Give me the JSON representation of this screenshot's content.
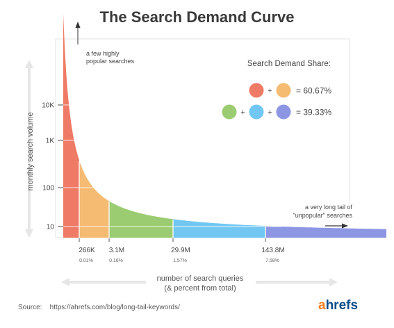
{
  "chart_data": {
    "type": "area",
    "title": "The Search Demand Curve",
    "ylabel": "monthly search volume",
    "xlabel_line1": "number of search queries",
    "xlabel_line2": "(& percent from total)",
    "y_scale": "log",
    "y_ticks": [
      {
        "value": 10,
        "label": "10"
      },
      {
        "value": 100,
        "label": "100"
      },
      {
        "value": 1000,
        "label": "1K"
      },
      {
        "value": 10000,
        "label": "10K"
      }
    ],
    "x_markers": [
      {
        "label": "266K",
        "percent": "0.01%"
      },
      {
        "label": "3.1M",
        "percent": "0.16%"
      },
      {
        "label": "29.9M",
        "percent": "1.57%"
      },
      {
        "label": "143.8M",
        "percent": "7.58%"
      }
    ],
    "segments": [
      {
        "color": "#ef7b66",
        "from": "0",
        "to": "266K"
      },
      {
        "color": "#f5bb73",
        "from": "266K",
        "to": "3.1M"
      },
      {
        "color": "#9bcc71",
        "from": "3.1M",
        "to": "29.9M"
      },
      {
        "color": "#72c7f2",
        "from": "29.9M",
        "to": "143.8M"
      },
      {
        "color": "#8c96e3",
        "from": "143.8M",
        "to": "end"
      }
    ],
    "legend": {
      "title": "Search Demand Share:",
      "rows": [
        {
          "colors": [
            "#ef7b66",
            "#f5bb73"
          ],
          "value": "= 60.67%"
        },
        {
          "colors": [
            "#9bcc71",
            "#72c7f2",
            "#8c96e3"
          ],
          "value": "= 39.33%"
        }
      ],
      "plus": "+"
    },
    "annotations": {
      "head_line1": "a few highly",
      "head_line2": "popular searches",
      "tail_line1": "a very long tail of",
      "tail_line2": "\"unpopular\" searches"
    }
  },
  "footer": {
    "source_label": "Source:",
    "source_url": "https://ahrefs.com/blog/long-tail-keywords/",
    "logo_a": "a",
    "logo_rest": "hrefs"
  }
}
